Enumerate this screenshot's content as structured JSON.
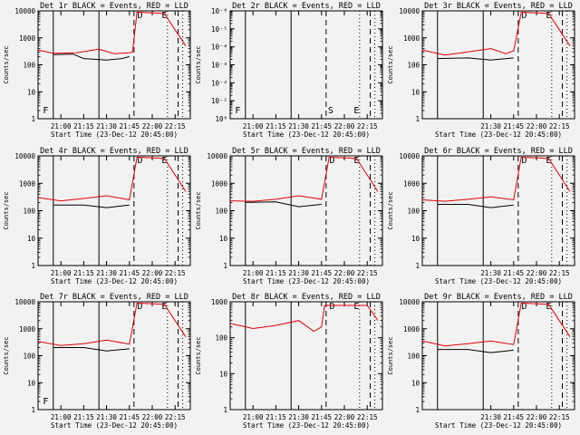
{
  "figure": {
    "ylabel": "Counts/sec",
    "xlabel": "Start Time (23-Dec-12 20:45:00)",
    "x_ticks": [
      "21:00",
      "21:15",
      "21:30",
      "21:45",
      "22:00",
      "22:15"
    ],
    "y_ticks_log": [
      "1",
      "10",
      "100",
      "1000",
      "10000"
    ],
    "y_ticks_tiny": [
      "10⁰",
      "10⁻¹",
      "10⁻²",
      "10⁻³",
      "10⁻⁴",
      "10⁻⁵",
      "10⁻⁶"
    ],
    "colors": {
      "events": "#000000",
      "lld": "#e00000",
      "background": "#f2f2f2"
    }
  },
  "chart_data": [
    {
      "type": "line",
      "title": "Det 1r BLACK = Events, RED = LLD",
      "xlabel": "Start Time (23-Dec-12 20:45:00)",
      "ylabel": "Counts/sec",
      "yscale": "log",
      "ylim": [
        1,
        10000
      ],
      "x_ticks": [
        "21:00",
        "21:15",
        "21:30",
        "21:45",
        "22:00",
        "22:15"
      ],
      "annotations": [
        "F",
        "D",
        "E"
      ],
      "events_visible": true,
      "series": [
        {
          "x": [
            "20:45",
            "20:55",
            "21:10",
            "21:25",
            "21:35",
            "21:45",
            "21:47",
            "21:50"
          ],
          "values": [
            350,
            270,
            280,
            380,
            260,
            280,
            300,
            9000
          ]
        },
        {
          "x": [
            "20:55",
            "21:08",
            "21:15",
            "21:30",
            "21:40",
            "21:45"
          ],
          "values": [
            240,
            250,
            170,
            150,
            170,
            200
          ]
        }
      ]
    },
    {
      "type": "line",
      "title": "Det 2r BLACK = Events, RED = LLD",
      "xlabel": "Start Time (23-Dec-12 20:45:00)",
      "ylabel": "Counts/sec",
      "yscale": "log",
      "ylim": [
        1e-06,
        1
      ],
      "x_ticks": [
        "21:00",
        "21:15",
        "21:30",
        "21:45",
        "22:00",
        "22:15"
      ],
      "annotations": [
        "F",
        "S",
        "E"
      ],
      "events_visible": false,
      "series": []
    },
    {
      "type": "line",
      "title": "Det 3r BLACK = Events, RED = LLD",
      "xlabel": "Start Time (23-Dec-12 20:45:00)",
      "ylabel": "Counts/sec",
      "yscale": "log",
      "ylim": [
        1,
        10000
      ],
      "x_ticks": [
        "21:30",
        "21:45",
        "22:00",
        "22:15"
      ],
      "annotations": [
        "D",
        "E"
      ],
      "events_visible": true,
      "series": [
        {
          "x": [
            "20:45",
            "21:00",
            "21:15",
            "21:30",
            "21:40",
            "21:45"
          ],
          "values": [
            350,
            230,
            300,
            400,
            260,
            330
          ]
        },
        {
          "x": [
            "20:55",
            "21:15",
            "21:30",
            "21:45"
          ],
          "values": [
            170,
            180,
            150,
            180
          ]
        }
      ]
    },
    {
      "type": "line",
      "title": "Det 4r BLACK = Events, RED = LLD",
      "xlabel": "Start Time (23-Dec-12 20:45:00)",
      "ylabel": "Counts/sec",
      "yscale": "log",
      "ylim": [
        1,
        10000
      ],
      "x_ticks": [
        "21:00",
        "21:15",
        "21:30",
        "21:45",
        "22:00",
        "22:15"
      ],
      "annotations": [
        "D",
        "E"
      ],
      "events_visible": true,
      "series": [
        {
          "x": [
            "20:45",
            "21:00",
            "21:15",
            "21:30",
            "21:45"
          ],
          "values": [
            300,
            230,
            280,
            350,
            250
          ]
        },
        {
          "x": [
            "20:55",
            "21:15",
            "21:30",
            "21:45"
          ],
          "values": [
            160,
            160,
            130,
            160
          ]
        }
      ]
    },
    {
      "type": "line",
      "title": "Det 5r BLACK = Events, RED = LLD",
      "xlabel": "Start Time (23-Dec-12 20:45:00)",
      "ylabel": "Counts/sec",
      "yscale": "log",
      "ylim": [
        1,
        10000
      ],
      "x_ticks": [
        "21:00",
        "21:15",
        "21:30",
        "21:45",
        "22:00",
        "22:15"
      ],
      "annotations": [
        "D",
        "E"
      ],
      "events_visible": true,
      "series": [
        {
          "x": [
            "20:45",
            "21:00",
            "21:15",
            "21:30",
            "21:45"
          ],
          "values": [
            230,
            220,
            260,
            350,
            260
          ]
        },
        {
          "x": [
            "20:55",
            "21:15",
            "21:30",
            "21:45"
          ],
          "values": [
            200,
            210,
            140,
            170
          ]
        }
      ]
    },
    {
      "type": "line",
      "title": "Det 6r BLACK = Events, RED = LLD",
      "xlabel": "Start Time (23-Dec-12 20:45:00)",
      "ylabel": "Counts/sec",
      "yscale": "log",
      "ylim": [
        1,
        10000
      ],
      "x_ticks": [
        "21:30",
        "21:45",
        "22:00",
        "22:15"
      ],
      "annotations": [
        "D",
        "E"
      ],
      "events_visible": true,
      "series": [
        {
          "x": [
            "20:45",
            "21:00",
            "21:15",
            "21:30",
            "21:45"
          ],
          "values": [
            250,
            220,
            260,
            320,
            250
          ]
        },
        {
          "x": [
            "20:55",
            "21:15",
            "21:30",
            "21:45"
          ],
          "values": [
            170,
            170,
            130,
            160
          ]
        }
      ]
    },
    {
      "type": "line",
      "title": "Det 7r BLACK = Events, RED = LLD",
      "xlabel": "Start Time (23-Dec-12 20:45:00)",
      "ylabel": "Counts/sec",
      "yscale": "log",
      "ylim": [
        1,
        10000
      ],
      "x_ticks": [
        "21:00",
        "21:15",
        "21:30",
        "21:45",
        "22:00",
        "22:15"
      ],
      "annotations": [
        "F",
        "D",
        "E"
      ],
      "events_visible": true,
      "series": [
        {
          "x": [
            "20:45",
            "21:00",
            "21:15",
            "21:30",
            "21:45"
          ],
          "values": [
            340,
            240,
            280,
            380,
            270
          ]
        },
        {
          "x": [
            "20:55",
            "21:15",
            "21:30",
            "21:45"
          ],
          "values": [
            200,
            200,
            150,
            180
          ]
        }
      ]
    },
    {
      "type": "line",
      "title": "Det 8r BLACK = Events, RED = LLD",
      "xlabel": "Start Time (23-Dec-12 20:45:00)",
      "ylabel": "Counts/sec",
      "yscale": "log",
      "ylim": [
        1,
        1000
      ],
      "x_ticks": [
        "21:00",
        "21:15",
        "21:30",
        "21:45",
        "22:00",
        "22:15"
      ],
      "annotations": [
        "D",
        "E"
      ],
      "events_visible": false,
      "series": [
        {
          "x": [
            "20:45",
            "21:00",
            "21:15",
            "21:30",
            "21:40",
            "21:45"
          ],
          "values": [
            250,
            180,
            220,
            300,
            150,
            200
          ]
        }
      ]
    },
    {
      "type": "line",
      "title": "Det 9r BLACK = Events, RED = LLD",
      "xlabel": "Start Time (23-Dec-12 20:45:00)",
      "ylabel": "Counts/sec",
      "yscale": "log",
      "ylim": [
        1,
        10000
      ],
      "x_ticks": [
        "21:30",
        "21:45",
        "22:00",
        "22:15"
      ],
      "annotations": [
        "D",
        "E"
      ],
      "events_visible": true,
      "series": [
        {
          "x": [
            "20:45",
            "21:00",
            "21:15",
            "21:30",
            "21:45"
          ],
          "values": [
            350,
            230,
            280,
            350,
            260
          ]
        },
        {
          "x": [
            "20:55",
            "21:15",
            "21:30",
            "21:45"
          ],
          "values": [
            170,
            170,
            130,
            160
          ]
        }
      ]
    }
  ]
}
